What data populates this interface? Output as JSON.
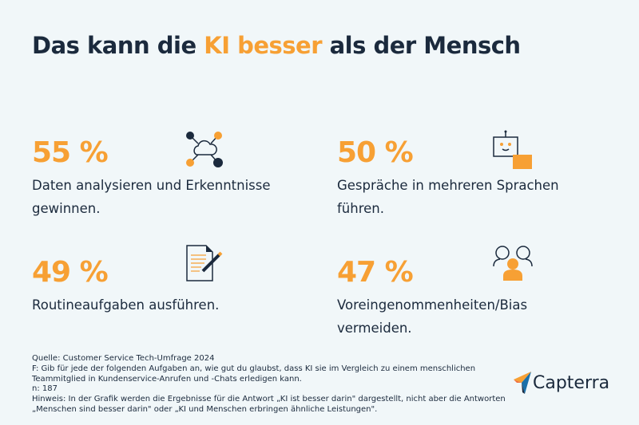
{
  "title": {
    "pre": "Das kann die ",
    "highlight": "KI besser",
    "post": " als der Mensch"
  },
  "colors": {
    "accent": "#f7a034",
    "text": "#1b2a3d",
    "background": "#f1f7f9"
  },
  "stats": [
    {
      "value": "55 %",
      "label": "Daten analysieren und Erkenntnisse gewinnen.",
      "icon": "cloud-network-icon"
    },
    {
      "value": "50 %",
      "label": "Gespräche in mehreren Sprachen führen.",
      "icon": "robot-chat-icon"
    },
    {
      "value": "49 %",
      "label": "Routineaufgaben ausführen.",
      "icon": "document-pencil-icon"
    },
    {
      "value": "47 %",
      "label": "Voreingenommenheiten/Bias vermeiden.",
      "icon": "people-icon"
    }
  ],
  "footer": {
    "source": "Quelle: Customer Service Tech-Umfrage 2024",
    "question": "F: Gib für jede der folgenden Aufgaben an, wie gut du glaubst, dass KI sie im Vergleich zu einem menschlichen Teammitglied in Kundenservice-Anrufen und -Chats erledigen kann.",
    "n": "n: 187",
    "note": "Hinweis: In der Grafik werden die Ergebnisse für die Antwort „KI ist besser darin\" dargestellt, nicht aber die Antworten „Menschen sind besser darin\" oder „KI und Menschen erbringen ähnliche Leistungen\"."
  },
  "logo": {
    "text": "Capterra"
  }
}
